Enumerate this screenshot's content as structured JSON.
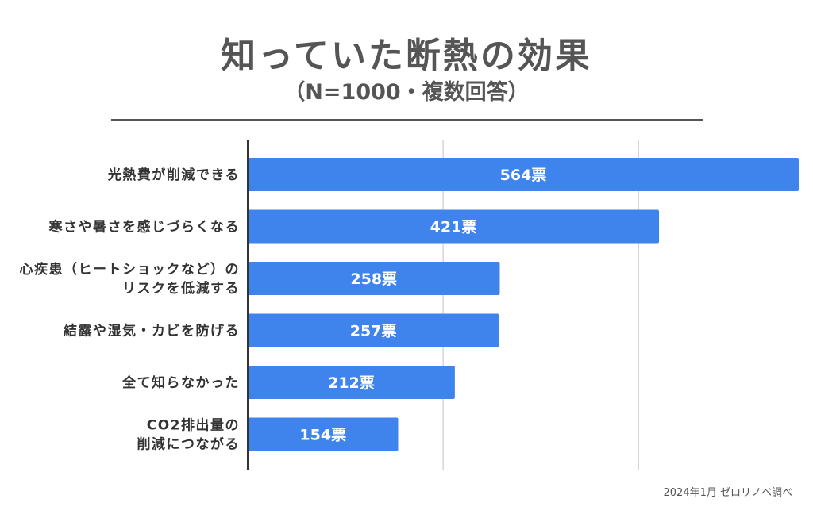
{
  "chart_data": {
    "type": "bar",
    "orientation": "horizontal",
    "title": "知っていた断熱の効果",
    "subtitle": "（N=1000・複数回答）",
    "categories": [
      [
        "光熱費が削減できる"
      ],
      [
        "寒さや暑さを感じづらくなる"
      ],
      [
        "心疾患（ヒートショックなど）の",
        "リスクを低減する"
      ],
      [
        "結露や湿気・カビを防げる"
      ],
      [
        "全て知らなかった"
      ],
      [
        "CO2排出量の",
        "削減につながる"
      ]
    ],
    "values": [
      564,
      421,
      258,
      257,
      212,
      154
    ],
    "value_labels": [
      "564票",
      "421票",
      "258票",
      "257票",
      "212票",
      "154票"
    ],
    "unit": "票",
    "xlim": [
      0,
      570
    ],
    "gridlines": [
      200,
      400
    ],
    "bar_color": "#3f84ec",
    "source": "2024年1月 ゼロリノベ調べ"
  }
}
